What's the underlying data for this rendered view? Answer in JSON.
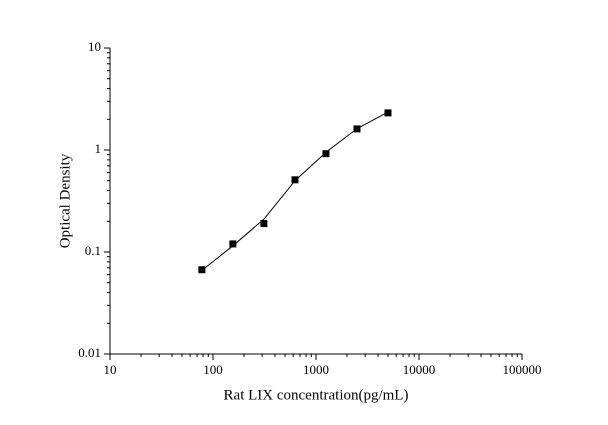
{
  "chart_data": {
    "type": "scatter",
    "x_label": "Rat LIX concentration(pg/mL)",
    "y_label": "Optical Density",
    "xlog": true,
    "ylog": true,
    "xlim": [
      10,
      100000
    ],
    "ylim": [
      0.01,
      10
    ],
    "xticks": [
      10,
      100,
      1000,
      10000,
      100000
    ],
    "yticks": [
      0.01,
      0.1,
      1,
      10
    ],
    "series": [
      {
        "style": "marker",
        "color": "#000000",
        "x": [
          78,
          156,
          312,
          625,
          1250,
          2500,
          5000
        ],
        "values": [
          0.067,
          0.12,
          0.19,
          0.51,
          0.92,
          1.61,
          2.31
        ]
      },
      {
        "style": "line",
        "color": "#000000",
        "x": [
          78,
          156,
          312,
          625,
          1250,
          2500,
          5000
        ],
        "values": [
          0.066,
          0.115,
          0.21,
          0.5,
          0.95,
          1.62,
          2.35
        ]
      }
    ]
  }
}
